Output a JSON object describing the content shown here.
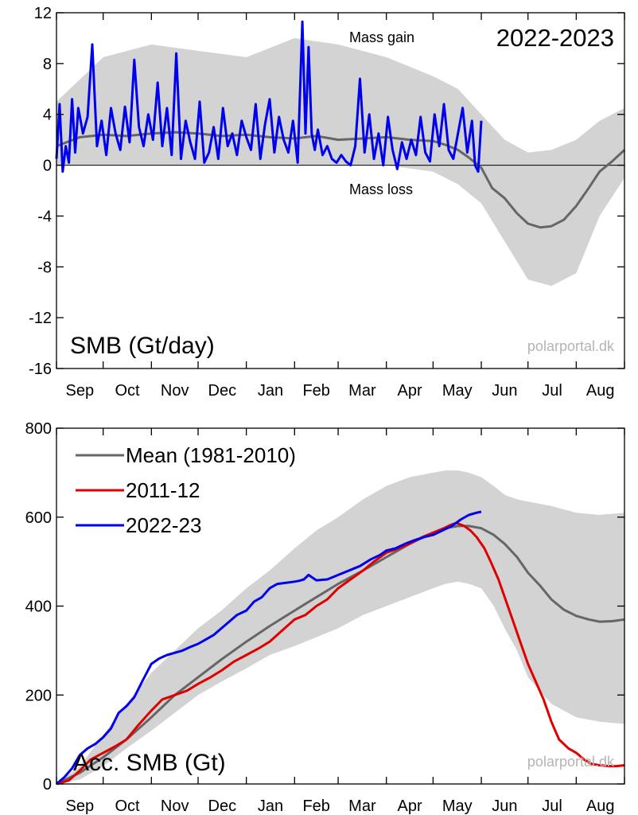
{
  "colors": {
    "band": "#d3d3d3",
    "mean": "#666666",
    "season_2011_12": "#e00000",
    "season_2022_23": "#0000ee",
    "watermark": "#b4b4b4"
  },
  "chart_data": [
    {
      "type": "line",
      "title": "SMB (Gt/day)",
      "season_label": "2022-2023",
      "watermark": "polarportal.dk",
      "annotations": {
        "gain": "Mass gain",
        "loss": "Mass loss"
      },
      "x_categories": [
        "Sep",
        "Oct",
        "Nov",
        "Dec",
        "Jan",
        "Feb",
        "Mar",
        "Apr",
        "May",
        "Jun",
        "Jul",
        "Aug"
      ],
      "xlim_days": [
        0,
        365
      ],
      "ylim": [
        -16,
        12
      ],
      "yticks": [
        -16,
        -12,
        -8,
        -4,
        0,
        4,
        8,
        12
      ],
      "ytick_labels": [
        "-16",
        "-12",
        "-8",
        "-4",
        "0",
        "4",
        "8",
        "12"
      ],
      "zero_line": true,
      "band": {
        "x": [
          0,
          30,
          61,
          91,
          122,
          153,
          181,
          212,
          242,
          258,
          273,
          288,
          303,
          318,
          334,
          349,
          365
        ],
        "upper": [
          5,
          8.5,
          9.5,
          9,
          8.5,
          10,
          9.5,
          8.5,
          7,
          6,
          4,
          2,
          1,
          1.2,
          2,
          3.5,
          4.5
        ],
        "lower": [
          0,
          0,
          0,
          0,
          0,
          0,
          0,
          0,
          -0.5,
          -1.5,
          -3,
          -6,
          -9,
          -9.5,
          -8.5,
          -4,
          -1
        ]
      },
      "series": [
        {
          "name": "Mean (1981-2010)",
          "x": [
            0,
            15,
            30,
            45,
            61,
            76,
            91,
            106,
            122,
            137,
            153,
            167,
            181,
            197,
            212,
            227,
            242,
            250,
            258,
            265,
            273,
            280,
            288,
            296,
            303,
            311,
            318,
            326,
            334,
            342,
            349,
            357,
            365
          ],
          "y": [
            1.5,
            2.2,
            2.4,
            2.3,
            2.5,
            2.6,
            2.5,
            2.3,
            2.4,
            2.2,
            2.1,
            2.3,
            2.0,
            2.1,
            2.2,
            2.0,
            1.9,
            1.6,
            1.2,
            0.6,
            -0.2,
            -1.8,
            -2.6,
            -3.8,
            -4.6,
            -4.9,
            -4.8,
            -4.3,
            -3.2,
            -1.8,
            -0.5,
            0.3,
            1.2
          ]
        },
        {
          "name": "2022-23",
          "x": [
            0,
            2,
            4,
            6,
            8,
            10,
            12,
            14,
            17,
            20,
            23,
            26,
            29,
            32,
            35,
            38,
            41,
            44,
            47,
            50,
            53,
            56,
            59,
            62,
            65,
            68,
            71,
            74,
            77,
            80,
            83,
            86,
            89,
            92,
            95,
            98,
            101,
            104,
            107,
            110,
            113,
            116,
            119,
            122,
            125,
            128,
            131,
            134,
            137,
            140,
            143,
            146,
            149,
            152,
            155,
            158,
            160,
            162,
            164,
            166,
            168,
            171,
            174,
            177,
            180,
            183,
            186,
            189,
            192,
            195,
            198,
            201,
            204,
            207,
            210,
            213,
            216,
            219,
            222,
            225,
            228,
            231,
            234,
            237,
            240,
            243,
            246,
            249,
            252,
            255,
            258,
            261,
            264,
            267,
            269,
            271,
            273
          ],
          "y": [
            0.5,
            4.8,
            -0.5,
            1.5,
            0.2,
            5.2,
            1.0,
            4.5,
            2.5,
            3.8,
            9.5,
            1.5,
            3.5,
            0.8,
            4.5,
            2.5,
            1.2,
            4.6,
            1.8,
            8.3,
            3.0,
            1.5,
            4.0,
            2.0,
            6.5,
            1.5,
            4.5,
            0.8,
            8.8,
            0.5,
            3.5,
            1.8,
            0.5,
            5.0,
            0.2,
            1.0,
            3.0,
            0.5,
            4.5,
            1.5,
            2.5,
            0.8,
            3.5,
            2.2,
            1.2,
            4.8,
            0.5,
            3.2,
            5.2,
            1.0,
            3.8,
            2.0,
            1.0,
            3.5,
            0.2,
            11.3,
            2.5,
            9.3,
            2.5,
            1.2,
            2.8,
            0.8,
            1.5,
            0.5,
            0.2,
            0.8,
            0.3,
            0.0,
            1.5,
            6.8,
            1.0,
            4.0,
            0.5,
            2.5,
            0.0,
            3.8,
            1.2,
            -0.3,
            1.8,
            0.5,
            2.0,
            0.8,
            3.8,
            1.0,
            0.3,
            4.0,
            1.5,
            4.8,
            1.2,
            0.5,
            2.5,
            4.5,
            1.0,
            3.5,
            0.0,
            -0.5,
            3.5
          ]
        }
      ]
    },
    {
      "type": "line",
      "title": "Acc. SMB (Gt)",
      "watermark": "polarportal.dk",
      "x_categories": [
        "Sep",
        "Oct",
        "Nov",
        "Dec",
        "Jan",
        "Feb",
        "Mar",
        "Apr",
        "May",
        "Jun",
        "Jul",
        "Aug"
      ],
      "xlim_days": [
        0,
        365
      ],
      "ylim": [
        0,
        800
      ],
      "yticks": [
        0,
        200,
        400,
        600,
        800
      ],
      "ytick_labels": [
        "0",
        "200",
        "400",
        "600",
        "800"
      ],
      "legend": {
        "position": "top-left",
        "entries": [
          {
            "label": "Mean (1981-2010)",
            "key": "mean"
          },
          {
            "label": "2011-12",
            "key": "season_2011_12"
          },
          {
            "label": "2022-23",
            "key": "season_2022_23"
          }
        ]
      },
      "band": {
        "x": [
          0,
          15,
          30,
          45,
          61,
          76,
          91,
          106,
          122,
          137,
          153,
          167,
          181,
          197,
          212,
          227,
          242,
          250,
          258,
          265,
          273,
          281,
          288,
          296,
          303,
          318,
          334,
          349,
          365
        ],
        "upper": [
          0,
          40,
          110,
          180,
          250,
          300,
          350,
          390,
          440,
          480,
          530,
          570,
          600,
          640,
          670,
          690,
          700,
          705,
          705,
          700,
          690,
          670,
          650,
          640,
          635,
          625,
          610,
          605,
          610
        ],
        "lower": [
          0,
          10,
          40,
          80,
          120,
          160,
          200,
          230,
          260,
          290,
          310,
          330,
          350,
          380,
          400,
          420,
          440,
          450,
          455,
          450,
          440,
          400,
          350,
          300,
          240,
          180,
          150,
          140,
          135
        ]
      },
      "series": [
        {
          "name": "Mean (1981-2010)",
          "key": "mean",
          "x": [
            0,
            15,
            30,
            45,
            61,
            76,
            91,
            106,
            122,
            137,
            153,
            167,
            181,
            197,
            212,
            227,
            242,
            250,
            258,
            265,
            273,
            281,
            288,
            296,
            303,
            311,
            318,
            326,
            334,
            342,
            349,
            357,
            365
          ],
          "y": [
            0,
            25,
            60,
            100,
            150,
            200,
            240,
            280,
            320,
            355,
            390,
            420,
            450,
            480,
            510,
            540,
            565,
            575,
            580,
            580,
            575,
            560,
            540,
            510,
            475,
            445,
            415,
            392,
            378,
            370,
            365,
            366,
            370
          ]
        },
        {
          "name": "2011-12",
          "key": "season_2011_12",
          "x": [
            0,
            8,
            15,
            22,
            30,
            38,
            45,
            52,
            61,
            68,
            76,
            84,
            91,
            99,
            106,
            114,
            122,
            130,
            137,
            145,
            153,
            160,
            167,
            174,
            181,
            189,
            197,
            204,
            212,
            220,
            227,
            235,
            242,
            249,
            253,
            257,
            262,
            266,
            270,
            275,
            279,
            284,
            288,
            293,
            298,
            303,
            308,
            313,
            318,
            323,
            329,
            334,
            339,
            344,
            349,
            355,
            360,
            365
          ],
          "y": [
            0,
            8,
            30,
            55,
            70,
            85,
            100,
            130,
            165,
            190,
            200,
            210,
            225,
            240,
            255,
            275,
            290,
            305,
            320,
            345,
            370,
            380,
            400,
            415,
            440,
            460,
            480,
            500,
            520,
            530,
            540,
            555,
            565,
            575,
            582,
            587,
            580,
            570,
            555,
            530,
            500,
            460,
            420,
            370,
            320,
            270,
            230,
            190,
            140,
            100,
            80,
            70,
            55,
            45,
            42,
            40,
            40,
            42
          ]
        },
        {
          "name": "2022-23",
          "key": "season_2022_23",
          "x": [
            0,
            5,
            10,
            15,
            20,
            25,
            30,
            35,
            40,
            45,
            50,
            55,
            61,
            66,
            71,
            76,
            81,
            86,
            91,
            96,
            101,
            106,
            111,
            116,
            122,
            127,
            132,
            137,
            142,
            147,
            153,
            156,
            159,
            162,
            167,
            174,
            181,
            188,
            195,
            202,
            208,
            212,
            218,
            224,
            230,
            236,
            242,
            248,
            254,
            260,
            265,
            270,
            273
          ],
          "y": [
            0,
            15,
            35,
            65,
            80,
            90,
            105,
            125,
            160,
            175,
            195,
            230,
            270,
            282,
            290,
            295,
            300,
            308,
            315,
            325,
            335,
            350,
            365,
            380,
            390,
            410,
            420,
            440,
            450,
            452,
            455,
            457,
            460,
            470,
            458,
            460,
            470,
            480,
            490,
            505,
            515,
            525,
            530,
            540,
            548,
            555,
            560,
            570,
            580,
            595,
            605,
            610,
            612
          ]
        }
      ]
    }
  ]
}
